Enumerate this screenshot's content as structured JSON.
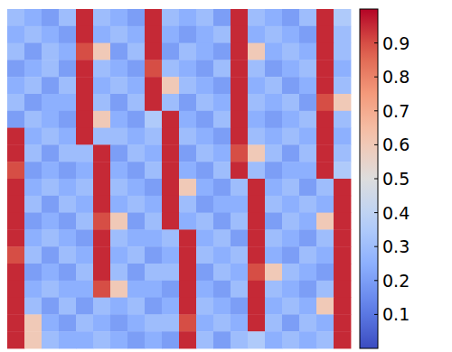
{
  "chart_data": {
    "type": "heatmap",
    "color": "coolwarm",
    "tick_labels": false,
    "cells": [
      [
        0.3,
        0.25,
        0.2,
        0.3,
        0.95,
        0.3,
        0.25,
        0.2,
        0.95,
        0.3,
        0.25,
        0.3,
        0.2,
        0.95,
        0.3,
        0.25,
        0.2,
        0.3,
        0.95,
        0.35
      ],
      [
        0.25,
        0.3,
        0.25,
        0.2,
        0.95,
        0.25,
        0.3,
        0.25,
        0.95,
        0.25,
        0.2,
        0.25,
        0.3,
        0.95,
        0.25,
        0.3,
        0.25,
        0.2,
        0.95,
        0.3
      ],
      [
        0.3,
        0.2,
        0.3,
        0.25,
        0.9,
        0.6,
        0.2,
        0.3,
        0.95,
        0.2,
        0.3,
        0.25,
        0.2,
        0.95,
        0.6,
        0.25,
        0.3,
        0.25,
        0.95,
        0.3
      ],
      [
        0.2,
        0.25,
        0.3,
        0.2,
        0.95,
        0.3,
        0.25,
        0.2,
        0.9,
        0.3,
        0.25,
        0.2,
        0.3,
        0.95,
        0.3,
        0.2,
        0.25,
        0.3,
        0.95,
        0.25
      ],
      [
        0.25,
        0.3,
        0.2,
        0.3,
        0.95,
        0.25,
        0.3,
        0.25,
        0.95,
        0.6,
        0.3,
        0.25,
        0.2,
        0.95,
        0.25,
        0.3,
        0.2,
        0.25,
        0.95,
        0.3
      ],
      [
        0.3,
        0.2,
        0.25,
        0.25,
        0.95,
        0.3,
        0.2,
        0.3,
        0.95,
        0.3,
        0.2,
        0.3,
        0.25,
        0.95,
        0.3,
        0.25,
        0.3,
        0.2,
        0.9,
        0.6
      ],
      [
        0.2,
        0.3,
        0.25,
        0.2,
        0.95,
        0.6,
        0.25,
        0.2,
        0.35,
        0.95,
        0.25,
        0.2,
        0.3,
        0.95,
        0.25,
        0.2,
        0.25,
        0.3,
        0.95,
        0.3
      ],
      [
        0.95,
        0.25,
        0.3,
        0.25,
        0.95,
        0.3,
        0.3,
        0.25,
        0.3,
        0.95,
        0.3,
        0.25,
        0.2,
        0.95,
        0.3,
        0.25,
        0.3,
        0.25,
        0.95,
        0.25
      ],
      [
        0.95,
        0.3,
        0.2,
        0.3,
        0.3,
        0.95,
        0.2,
        0.3,
        0.25,
        0.95,
        0.2,
        0.3,
        0.25,
        0.9,
        0.6,
        0.3,
        0.2,
        0.3,
        0.95,
        0.3
      ],
      [
        0.9,
        0.2,
        0.25,
        0.2,
        0.25,
        0.95,
        0.25,
        0.2,
        0.3,
        0.95,
        0.25,
        0.2,
        0.3,
        0.95,
        0.3,
        0.2,
        0.25,
        0.25,
        0.95,
        0.35
      ],
      [
        0.95,
        0.25,
        0.3,
        0.25,
        0.3,
        0.95,
        0.3,
        0.25,
        0.2,
        0.95,
        0.6,
        0.25,
        0.2,
        0.3,
        0.95,
        0.25,
        0.3,
        0.2,
        0.3,
        0.95
      ],
      [
        0.95,
        0.3,
        0.2,
        0.3,
        0.25,
        0.95,
        0.25,
        0.3,
        0.25,
        0.95,
        0.3,
        0.2,
        0.25,
        0.25,
        0.95,
        0.3,
        0.25,
        0.3,
        0.25,
        0.95
      ],
      [
        0.95,
        0.2,
        0.25,
        0.2,
        0.3,
        0.9,
        0.6,
        0.2,
        0.3,
        0.95,
        0.25,
        0.3,
        0.2,
        0.3,
        0.95,
        0.2,
        0.3,
        0.25,
        0.6,
        0.95
      ],
      [
        0.95,
        0.25,
        0.3,
        0.25,
        0.2,
        0.95,
        0.3,
        0.25,
        0.25,
        0.3,
        0.95,
        0.25,
        0.3,
        0.2,
        0.95,
        0.3,
        0.25,
        0.2,
        0.3,
        0.95
      ],
      [
        0.9,
        0.3,
        0.2,
        0.3,
        0.25,
        0.95,
        0.25,
        0.3,
        0.2,
        0.25,
        0.95,
        0.3,
        0.25,
        0.3,
        0.95,
        0.25,
        0.2,
        0.3,
        0.25,
        0.95
      ],
      [
        0.95,
        0.2,
        0.25,
        0.2,
        0.3,
        0.95,
        0.3,
        0.2,
        0.3,
        0.3,
        0.95,
        0.2,
        0.3,
        0.25,
        0.9,
        0.6,
        0.3,
        0.25,
        0.2,
        0.95
      ],
      [
        0.95,
        0.25,
        0.3,
        0.25,
        0.25,
        0.9,
        0.6,
        0.25,
        0.25,
        0.2,
        0.95,
        0.25,
        0.2,
        0.3,
        0.95,
        0.3,
        0.25,
        0.2,
        0.3,
        0.95
      ],
      [
        0.95,
        0.3,
        0.2,
        0.3,
        0.2,
        0.3,
        0.25,
        0.3,
        0.2,
        0.25,
        0.95,
        0.3,
        0.25,
        0.2,
        0.95,
        0.25,
        0.3,
        0.25,
        0.6,
        0.95
      ],
      [
        0.95,
        0.6,
        0.25,
        0.2,
        0.3,
        0.25,
        0.2,
        0.25,
        0.3,
        0.3,
        0.9,
        0.25,
        0.3,
        0.25,
        0.95,
        0.3,
        0.2,
        0.3,
        0.25,
        0.95
      ],
      [
        0.95,
        0.6,
        0.3,
        0.25,
        0.25,
        0.3,
        0.25,
        0.2,
        0.25,
        0.2,
        0.95,
        0.3,
        0.2,
        0.3,
        0.35,
        0.25,
        0.3,
        0.25,
        0.3,
        0.95
      ]
    ],
    "colorbar_lim": [
      0,
      1
    ],
    "colorbar_ticks": [
      0.1,
      0.2,
      0.3,
      0.4,
      0.5,
      0.6,
      0.7,
      0.8,
      0.9
    ]
  }
}
